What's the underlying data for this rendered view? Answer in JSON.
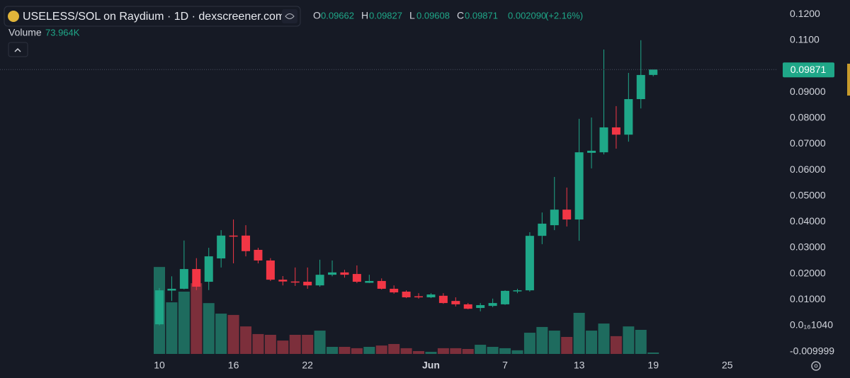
{
  "chart_data": {
    "type": "candlestick",
    "title": "USELESS/SOL on Raydium · 1D · dexscreener.com",
    "ohlc_labels": [
      "O",
      "H",
      "L",
      "C"
    ],
    "change": "0.002090",
    "change_pct": "(+2.16%)",
    "categories": [
      "10",
      null,
      null,
      null,
      null,
      null,
      "16",
      null,
      null,
      null,
      null,
      null,
      "22",
      null,
      null,
      null,
      null,
      null,
      null,
      null,
      null,
      null,
      "Jun",
      null,
      null,
      null,
      null,
      null,
      "7",
      null,
      null,
      null,
      null,
      null,
      "13",
      null,
      null,
      null,
      null,
      null,
      "19",
      null,
      null,
      null,
      null,
      null,
      "25"
    ],
    "open": [
      0.0005,
      0.0135,
      0.0142,
      0.0218,
      0.0169,
      0.0259,
      0.0347,
      0.0347,
      0.0292,
      0.0251,
      0.0177,
      0.017,
      0.0169,
      0.0155,
      0.0196,
      0.0205,
      0.0199,
      0.0165,
      0.0172,
      0.0142,
      0.0131,
      0.0113,
      0.0109,
      0.0115,
      0.0095,
      0.0082,
      0.0068,
      0.0076,
      0.0082,
      0.0134,
      0.0136,
      0.0346,
      0.0387,
      0.0447,
      0.0409,
      0.0666,
      0.0668,
      0.0764,
      0.0736,
      0.0873,
      0.09662,
      null,
      null,
      null,
      null,
      null,
      null
    ],
    "high": [
      0.0145,
      0.019,
      0.0328,
      0.026,
      0.03,
      0.0368,
      0.0409,
      0.0387,
      0.03,
      0.026,
      0.0191,
      0.0224,
      0.0224,
      0.0254,
      0.0251,
      0.0215,
      0.0232,
      0.0196,
      0.0182,
      0.0155,
      0.0136,
      0.0125,
      0.0125,
      0.0125,
      0.0109,
      0.0087,
      0.0087,
      0.0104,
      0.0136,
      0.0142,
      0.036,
      0.0436,
      0.0573,
      0.0532,
      0.0797,
      0.0802,
      0.1064,
      0.0846,
      0.0974,
      0.11,
      0.09827,
      null,
      null,
      null,
      null,
      null,
      null
    ],
    "low": [
      0.0001,
      0.0095,
      0.014,
      0.0137,
      0.0137,
      0.0224,
      0.024,
      0.0267,
      0.024,
      0.0172,
      0.0155,
      0.0153,
      0.0142,
      0.015,
      0.019,
      0.0185,
      0.0164,
      0.0164,
      0.0139,
      0.0123,
      0.0106,
      0.0104,
      0.0106,
      0.0084,
      0.0074,
      0.0063,
      0.0055,
      0.0071,
      0.008,
      0.0125,
      0.0131,
      0.0314,
      0.0368,
      0.0382,
      0.0327,
      0.0606,
      0.066,
      0.0682,
      0.0709,
      0.0837,
      0.09608,
      null,
      null,
      null,
      null,
      null,
      null
    ],
    "close": [
      0.0136,
      0.0142,
      0.0218,
      0.015,
      0.0267,
      0.0347,
      0.0344,
      0.0287,
      0.0251,
      0.0177,
      0.017,
      0.0168,
      0.0155,
      0.0196,
      0.0205,
      0.0196,
      0.0169,
      0.0172,
      0.0142,
      0.0128,
      0.0109,
      0.0112,
      0.012,
      0.0087,
      0.0082,
      0.0065,
      0.0079,
      0.0087,
      0.0134,
      0.0136,
      0.0346,
      0.0393,
      0.0447,
      0.0409,
      0.0668,
      0.0674,
      0.0764,
      0.0736,
      0.0873,
      0.0966,
      0.09871,
      null,
      null,
      null,
      null,
      null,
      null
    ],
    "volume": {
      "name": "Volume",
      "values": [
        4550000,
        2700000,
        3260000,
        3700000,
        2660000,
        2110000,
        2040000,
        1440000,
        1040000,
        1000000,
        700000,
        1000000,
        1000000,
        1220000,
        370000,
        370000,
        300000,
        370000,
        440000,
        520000,
        300000,
        150000,
        110000,
        300000,
        300000,
        260000,
        480000,
        370000,
        300000,
        190000,
        1110000,
        1410000,
        1220000,
        890000,
        2150000,
        1220000,
        1590000,
        930000,
        1440000,
        1260000,
        73964,
        null,
        null,
        null,
        null,
        null,
        null
      ],
      "value_labels": [
        null,
        null,
        null,
        null,
        null,
        null,
        null,
        null,
        null,
        null,
        null,
        null,
        null,
        null,
        null,
        null,
        null,
        null,
        null,
        null,
        null,
        null,
        null,
        null,
        null,
        null,
        null,
        null,
        null,
        null,
        null,
        null,
        null,
        null,
        null,
        null,
        null,
        null,
        null,
        null,
        "73.964K",
        null,
        null,
        null,
        null,
        null,
        null
      ]
    },
    "volume_ylim": [
      0,
      6000000
    ],
    "ylim": [
      -0.0131,
      0.1255
    ],
    "yticks": [
      {
        "value": 0.12,
        "label": "0.1200"
      },
      {
        "value": 0.11,
        "label": "0.1100"
      },
      {
        "value": 0.09,
        "label": "0.09000"
      },
      {
        "value": 0.08,
        "label": "0.08000"
      },
      {
        "value": 0.07,
        "label": "0.07000"
      },
      {
        "value": 0.06,
        "label": "0.06000"
      },
      {
        "value": 0.05,
        "label": "0.05000"
      },
      {
        "value": 0.04,
        "label": "0.04000"
      },
      {
        "value": 0.03,
        "label": "0.03000"
      },
      {
        "value": 0.02,
        "label": "0.02000"
      },
      {
        "value": 0.01,
        "label": "0.01000"
      },
      {
        "value": 1.04e-17,
        "label": "0.0₁₆1040"
      },
      {
        "value": -0.009999,
        "label": "-0.009999"
      }
    ],
    "up_color": "#1fa788",
    "down_color": "#f23645",
    "volume_up_color": "#1e6b5e",
    "volume_down_color": "#7c2f3b"
  }
}
